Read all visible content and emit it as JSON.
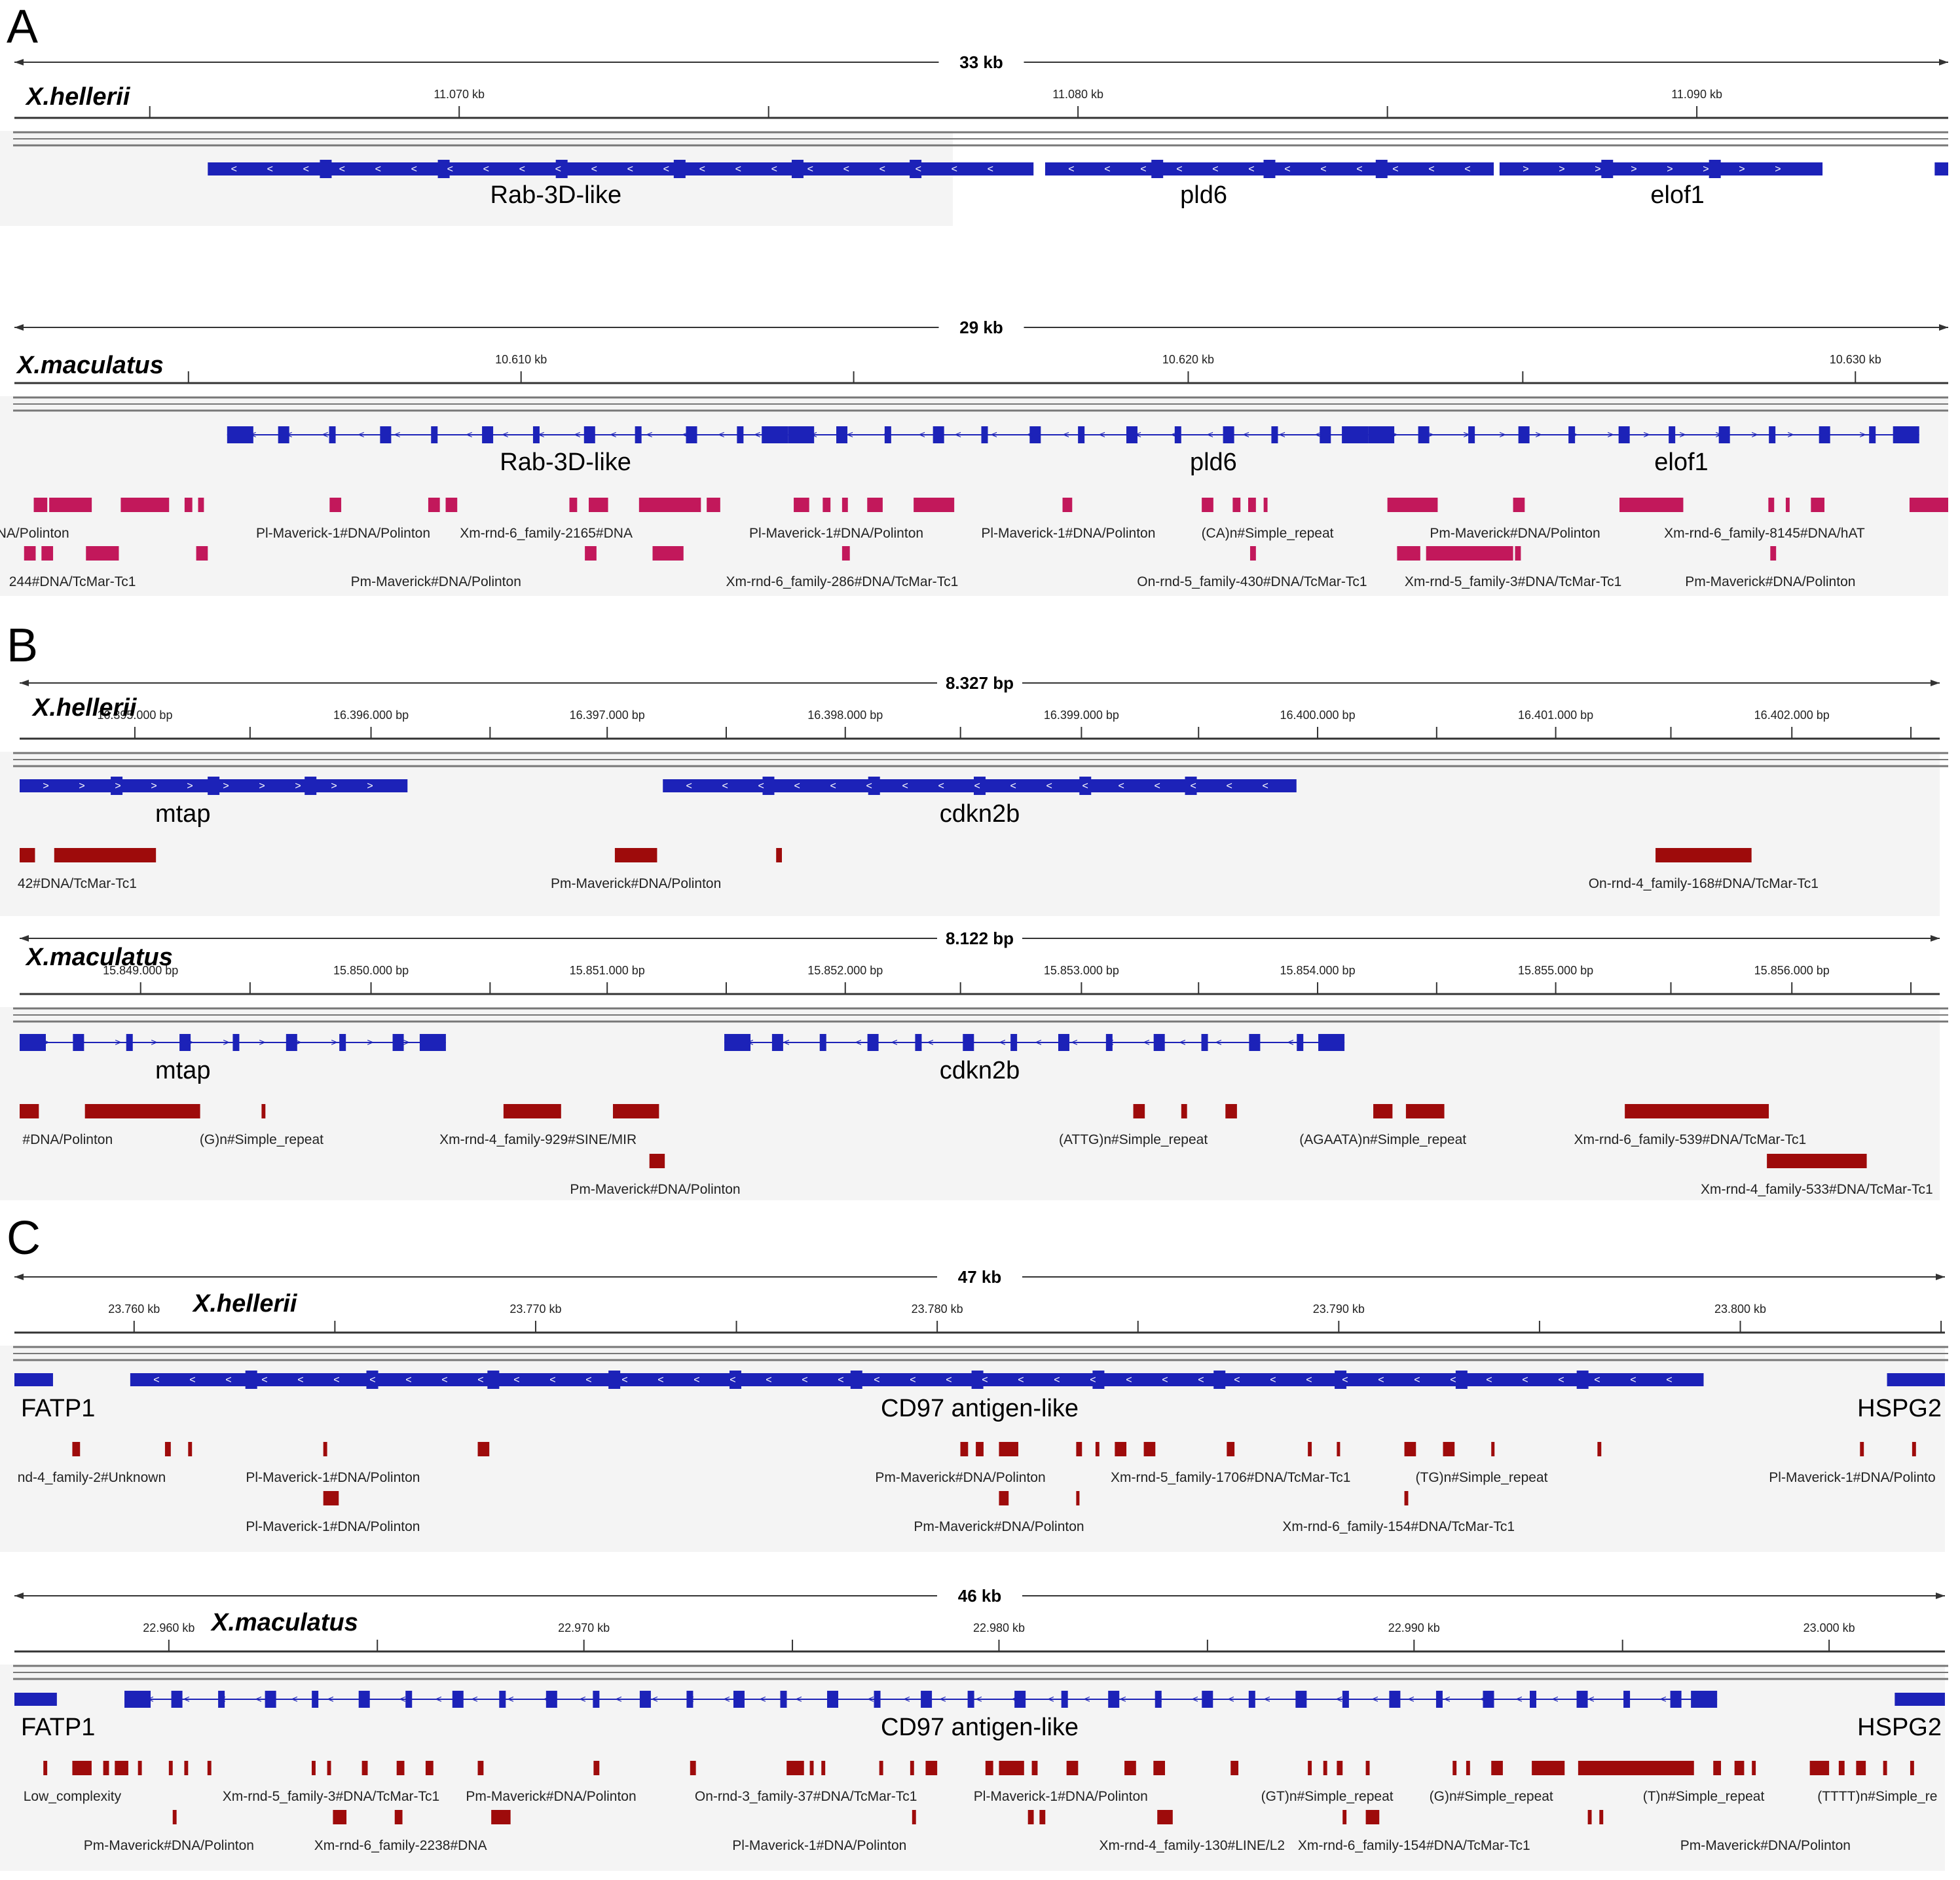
{
  "colors": {
    "gene": "#1c22b8",
    "repeat_a": "#c2185b",
    "repeat_bc": "#9e0b0b",
    "axis": "#333333",
    "band": "#f4f4f4"
  },
  "tracks": [
    {
      "id": "A-hellerii",
      "letter": "A",
      "species": "X.hellerii",
      "span": "33 kb",
      "ticks": [
        "11.070 kb",
        "11.080 kb",
        "11.090 kb"
      ],
      "repeat_color": "repeat_a",
      "genes": [
        {
          "label": "Rab-3D-like",
          "start": 0.1,
          "end": 0.527,
          "dir": "<",
          "intron": false
        },
        {
          "label": "pld6",
          "start": 0.533,
          "end": 0.765,
          "dir": "<",
          "intron": false
        },
        {
          "label": "elof1",
          "start": 0.768,
          "end": 0.935,
          "dir": ">",
          "intron": false
        },
        {
          "label": "",
          "start": 0.993,
          "end": 1.0,
          "dir": "",
          "intron": false
        }
      ],
      "repeats": [],
      "repeat_labels": []
    },
    {
      "id": "A-maculatus",
      "letter": "",
      "species": "X.maculatus",
      "span": "29 kb",
      "ticks": [
        "10.610 kb",
        "10.620 kb",
        "10.630 kb"
      ],
      "repeat_color": "repeat_a",
      "genes": [
        {
          "label": "Rab-3D-like",
          "start": 0.11,
          "end": 0.4,
          "dir": "<",
          "intron": true
        },
        {
          "label": "pld6",
          "start": 0.4,
          "end": 0.7,
          "dir": "<",
          "intron": true
        },
        {
          "label": "elof1",
          "start": 0.7,
          "end": 0.985,
          "dir": ">",
          "intron": true
        }
      ],
      "repeats": [
        [
          0.01,
          0.007,
          1
        ],
        [
          0.018,
          0.022,
          1
        ],
        [
          0.055,
          0.025,
          1
        ],
        [
          0.088,
          0.004,
          1
        ],
        [
          0.095,
          0.003,
          1
        ],
        [
          0.163,
          0.006,
          1
        ],
        [
          0.214,
          0.006,
          1
        ],
        [
          0.223,
          0.006,
          1
        ],
        [
          0.287,
          0.004,
          1
        ],
        [
          0.297,
          0.01,
          1
        ],
        [
          0.323,
          0.032,
          1
        ],
        [
          0.358,
          0.007,
          1
        ],
        [
          0.403,
          0.008,
          1
        ],
        [
          0.418,
          0.004,
          1
        ],
        [
          0.428,
          0.003,
          1
        ],
        [
          0.441,
          0.008,
          1
        ],
        [
          0.465,
          0.021,
          1
        ],
        [
          0.542,
          0.005,
          1
        ],
        [
          0.614,
          0.006,
          1
        ],
        [
          0.63,
          0.004,
          1
        ],
        [
          0.638,
          0.004,
          1
        ],
        [
          0.646,
          0.002,
          1
        ],
        [
          0.71,
          0.026,
          1
        ],
        [
          0.775,
          0.006,
          1
        ],
        [
          0.83,
          0.033,
          1
        ],
        [
          0.907,
          0.003,
          1
        ],
        [
          0.916,
          0.002,
          1
        ],
        [
          0.929,
          0.007,
          1
        ],
        [
          0.98,
          0.02,
          1
        ],
        [
          0.005,
          0.006,
          2
        ],
        [
          0.014,
          0.006,
          2
        ],
        [
          0.037,
          0.017,
          2
        ],
        [
          0.094,
          0.006,
          2
        ],
        [
          0.295,
          0.006,
          2
        ],
        [
          0.33,
          0.016,
          2
        ],
        [
          0.428,
          0.004,
          2
        ],
        [
          0.639,
          0.003,
          2
        ],
        [
          0.715,
          0.012,
          2
        ],
        [
          0.73,
          0.045,
          2
        ],
        [
          0.776,
          0.003,
          2
        ],
        [
          0.908,
          0.003,
          2
        ]
      ],
      "repeat_labels": [
        {
          "text": "#DNA/Polinton",
          "x": 0.005,
          "row": 1
        },
        {
          "text": "Pl-Maverick-1#DNA/Polinton",
          "x": 0.17,
          "row": 1
        },
        {
          "text": "Xm-rnd-6_family-2165#DNA",
          "x": 0.275,
          "row": 1
        },
        {
          "text": "Pl-Maverick-1#DNA/Polinton",
          "x": 0.425,
          "row": 1
        },
        {
          "text": "Pl-Maverick-1#DNA/Polinton",
          "x": 0.545,
          "row": 1
        },
        {
          "text": "(CA)n#Simple_repeat",
          "x": 0.648,
          "row": 1
        },
        {
          "text": "Pm-Maverick#DNA/Polinton",
          "x": 0.776,
          "row": 1
        },
        {
          "text": "Xm-rnd-6_family-8145#DNA/hAT",
          "x": 0.905,
          "row": 1
        },
        {
          "text": "244#DNA/TcMar-Tc1",
          "x": 0.03,
          "row": 2
        },
        {
          "text": "Pm-Maverick#DNA/Polinton",
          "x": 0.218,
          "row": 2
        },
        {
          "text": "Xm-rnd-6_family-286#DNA/TcMar-Tc1",
          "x": 0.428,
          "row": 2
        },
        {
          "text": "On-rnd-5_family-430#DNA/TcMar-Tc1",
          "x": 0.64,
          "row": 2
        },
        {
          "text": "Xm-rnd-5_family-3#DNA/TcMar-Tc1",
          "x": 0.775,
          "row": 2
        },
        {
          "text": "Pm-Maverick#DNA/Polinton",
          "x": 0.908,
          "row": 2
        }
      ]
    },
    {
      "id": "B-hellerii",
      "letter": "B",
      "species": "X.hellerii",
      "span": "8.327 bp",
      "ticks": [
        "16.395.000 bp",
        "16.396.000 bp",
        "16.397.000 bp",
        "16.398.000 bp",
        "16.399.000 bp",
        "16.400.000 bp",
        "16.401.000 bp",
        "16.402.000 bp"
      ],
      "repeat_color": "repeat_bc",
      "genes": [
        {
          "label": "mtap",
          "start": 0.0,
          "end": 0.202,
          "dir": ">",
          "intron": false
        },
        {
          "label": "cdkn2b",
          "start": 0.335,
          "end": 0.665,
          "dir": "<",
          "intron": false
        }
      ],
      "repeats": [
        [
          0.0,
          0.008,
          1
        ],
        [
          0.018,
          0.053,
          1
        ],
        [
          0.31,
          0.022,
          1
        ],
        [
          0.394,
          0.003,
          1
        ],
        [
          0.852,
          0.05,
          1
        ]
      ],
      "repeat_labels": [
        {
          "text": "42#DNA/TcMar-Tc1",
          "x": 0.03,
          "row": 1
        },
        {
          "text": "Pm-Maverick#DNA/Polinton",
          "x": 0.321,
          "row": 1
        },
        {
          "text": "On-rnd-4_family-168#DNA/TcMar-Tc1",
          "x": 0.877,
          "row": 1
        }
      ]
    },
    {
      "id": "B-maculatus",
      "letter": "",
      "species": "X.maculatus",
      "span": "8.122 bp",
      "ticks": [
        "15.849.000 bp",
        "15.850.000 bp",
        "15.851.000 bp",
        "15.852.000 bp",
        "15.853.000 bp",
        "15.854.000 bp",
        "15.855.000 bp",
        "15.856.000 bp"
      ],
      "repeat_color": "repeat_bc",
      "genes": [
        {
          "label": "mtap",
          "start": 0.0,
          "end": 0.222,
          "dir": ">",
          "intron": true
        },
        {
          "label": "cdkn2b",
          "start": 0.367,
          "end": 0.69,
          "dir": "<",
          "intron": true
        }
      ],
      "repeats": [
        [
          0.0,
          0.01,
          1
        ],
        [
          0.034,
          0.06,
          1
        ],
        [
          0.126,
          0.002,
          1
        ],
        [
          0.252,
          0.03,
          1
        ],
        [
          0.309,
          0.024,
          1
        ],
        [
          0.58,
          0.006,
          1
        ],
        [
          0.605,
          0.003,
          1
        ],
        [
          0.628,
          0.006,
          1
        ],
        [
          0.705,
          0.01,
          1
        ],
        [
          0.722,
          0.02,
          1
        ],
        [
          0.836,
          0.075,
          1
        ],
        [
          0.328,
          0.008,
          2
        ],
        [
          0.91,
          0.052,
          2
        ]
      ],
      "repeat_labels": [
        {
          "text": "#DNA/Polinton",
          "x": 0.025,
          "row": 1
        },
        {
          "text": "(G)n#Simple_repeat",
          "x": 0.126,
          "row": 1
        },
        {
          "text": "Xm-rnd-4_family-929#SINE/MIR",
          "x": 0.27,
          "row": 1
        },
        {
          "text": "(ATTG)n#Simple_repeat",
          "x": 0.58,
          "row": 1
        },
        {
          "text": "(AGAATA)n#Simple_repeat",
          "x": 0.71,
          "row": 1
        },
        {
          "text": "Xm-rnd-6_family-539#DNA/TcMar-Tc1",
          "x": 0.87,
          "row": 1
        },
        {
          "text": "Pm-Maverick#DNA/Polinton",
          "x": 0.331,
          "row": 2
        },
        {
          "text": "Xm-rnd-4_family-533#DNA/TcMar-Tc1",
          "x": 0.936,
          "row": 2
        }
      ]
    },
    {
      "id": "C-hellerii",
      "letter": "C",
      "species": "X.hellerii",
      "span": "47 kb",
      "ticks": [
        "23.760 kb",
        "23.770 kb",
        "23.780 kb",
        "23.790 kb",
        "23.800 kb"
      ],
      "repeat_color": "repeat_bc",
      "genes": [
        {
          "label": "FATP1",
          "start": 0.0,
          "end": 0.02,
          "dir": "",
          "intron": false
        },
        {
          "label": "CD97 antigen-like",
          "start": 0.06,
          "end": 0.875,
          "dir": "<",
          "intron": false
        },
        {
          "label": "HSPG2",
          "start": 0.97,
          "end": 1.0,
          "dir": "",
          "intron": false
        }
      ],
      "repeats": [
        [
          0.03,
          0.004,
          1
        ],
        [
          0.078,
          0.003,
          1
        ],
        [
          0.09,
          0.002,
          1
        ],
        [
          0.16,
          0.002,
          1
        ],
        [
          0.24,
          0.006,
          1
        ],
        [
          0.49,
          0.004,
          1
        ],
        [
          0.498,
          0.004,
          1
        ],
        [
          0.51,
          0.01,
          1
        ],
        [
          0.55,
          0.003,
          1
        ],
        [
          0.56,
          0.002,
          1
        ],
        [
          0.57,
          0.006,
          1
        ],
        [
          0.585,
          0.006,
          1
        ],
        [
          0.628,
          0.004,
          1
        ],
        [
          0.67,
          0.002,
          1
        ],
        [
          0.685,
          0.001,
          1
        ],
        [
          0.72,
          0.006,
          1
        ],
        [
          0.74,
          0.006,
          1
        ],
        [
          0.765,
          0.001,
          1
        ],
        [
          0.82,
          0.002,
          1
        ],
        [
          0.956,
          0.002,
          1
        ],
        [
          0.983,
          0.002,
          1
        ],
        [
          0.16,
          0.008,
          2
        ],
        [
          0.51,
          0.005,
          2
        ],
        [
          0.55,
          0.001,
          2
        ],
        [
          0.72,
          0.002,
          2
        ]
      ],
      "repeat_labels": [
        {
          "text": "nd-4_family-2#Unknown",
          "x": 0.04,
          "row": 1
        },
        {
          "text": "Pl-Maverick-1#DNA/Polinton",
          "x": 0.165,
          "row": 1
        },
        {
          "text": "Pm-Maverick#DNA/Polinton",
          "x": 0.49,
          "row": 1
        },
        {
          "text": "Xm-rnd-5_family-1706#DNA/TcMar-Tc1",
          "x": 0.63,
          "row": 1
        },
        {
          "text": "(TG)n#Simple_repeat",
          "x": 0.76,
          "row": 1
        },
        {
          "text": "Pl-Maverick-1#DNA/Polinto",
          "x": 0.952,
          "row": 1
        },
        {
          "text": "Pl-Maverick-1#DNA/Polinton",
          "x": 0.165,
          "row": 2
        },
        {
          "text": "Pm-Maverick#DNA/Polinton",
          "x": 0.51,
          "row": 2
        },
        {
          "text": "Xm-rnd-6_family-154#DNA/TcMar-Tc1",
          "x": 0.717,
          "row": 2
        }
      ]
    },
    {
      "id": "C-maculatus",
      "letter": "",
      "species": "X.maculatus",
      "span": "46 kb",
      "ticks": [
        "22.960 kb",
        "22.970 kb",
        "22.980 kb",
        "22.990 kb",
        "23.000 kb"
      ],
      "repeat_color": "repeat_bc",
      "genes": [
        {
          "label": "FATP1",
          "start": 0.0,
          "end": 0.022,
          "dir": "",
          "intron": false
        },
        {
          "label": "CD97 antigen-like",
          "start": 0.057,
          "end": 0.882,
          "dir": "<",
          "intron": true
        },
        {
          "label": "HSPG2",
          "start": 0.974,
          "end": 1.0,
          "dir": "",
          "intron": false
        }
      ],
      "repeats": [
        [
          0.015,
          0.002,
          1
        ],
        [
          0.03,
          0.01,
          1
        ],
        [
          0.046,
          0.003,
          1
        ],
        [
          0.052,
          0.007,
          1
        ],
        [
          0.064,
          0.002,
          1
        ],
        [
          0.08,
          0.002,
          1
        ],
        [
          0.088,
          0.002,
          1
        ],
        [
          0.1,
          0.002,
          1
        ],
        [
          0.154,
          0.002,
          1
        ],
        [
          0.162,
          0.002,
          1
        ],
        [
          0.18,
          0.003,
          1
        ],
        [
          0.198,
          0.004,
          1
        ],
        [
          0.213,
          0.004,
          1
        ],
        [
          0.24,
          0.003,
          1
        ],
        [
          0.3,
          0.003,
          1
        ],
        [
          0.35,
          0.003,
          1
        ],
        [
          0.4,
          0.009,
          1
        ],
        [
          0.412,
          0.002,
          1
        ],
        [
          0.418,
          0.002,
          1
        ],
        [
          0.448,
          0.002,
          1
        ],
        [
          0.464,
          0.002,
          1
        ],
        [
          0.472,
          0.006,
          1
        ],
        [
          0.503,
          0.004,
          1
        ],
        [
          0.51,
          0.013,
          1
        ],
        [
          0.527,
          0.003,
          1
        ],
        [
          0.545,
          0.006,
          1
        ],
        [
          0.575,
          0.006,
          1
        ],
        [
          0.59,
          0.006,
          1
        ],
        [
          0.63,
          0.004,
          1
        ],
        [
          0.67,
          0.002,
          1
        ],
        [
          0.678,
          0.002,
          1
        ],
        [
          0.685,
          0.003,
          1
        ],
        [
          0.7,
          0.002,
          1
        ],
        [
          0.745,
          0.002,
          1
        ],
        [
          0.752,
          0.002,
          1
        ],
        [
          0.765,
          0.006,
          1
        ],
        [
          0.786,
          0.017,
          1
        ],
        [
          0.81,
          0.06,
          1
        ],
        [
          0.88,
          0.004,
          1
        ],
        [
          0.891,
          0.005,
          1
        ],
        [
          0.9,
          0.002,
          1
        ],
        [
          0.93,
          0.01,
          1
        ],
        [
          0.945,
          0.003,
          1
        ],
        [
          0.954,
          0.005,
          1
        ],
        [
          0.968,
          0.002,
          1
        ],
        [
          0.982,
          0.002,
          1
        ],
        [
          0.082,
          0.002,
          2
        ],
        [
          0.165,
          0.007,
          2
        ],
        [
          0.197,
          0.004,
          2
        ],
        [
          0.247,
          0.01,
          2
        ],
        [
          0.465,
          0.002,
          2
        ],
        [
          0.525,
          0.003,
          2
        ],
        [
          0.531,
          0.003,
          2
        ],
        [
          0.592,
          0.008,
          2
        ],
        [
          0.688,
          0.002,
          2
        ],
        [
          0.7,
          0.007,
          2
        ],
        [
          0.815,
          0.002,
          2
        ],
        [
          0.821,
          0.002,
          2
        ]
      ],
      "repeat_labels": [
        {
          "text": "Low_complexity",
          "x": 0.03,
          "row": 1
        },
        {
          "text": "Xm-rnd-5_family-3#DNA/TcMar-Tc1",
          "x": 0.164,
          "row": 1
        },
        {
          "text": "Pm-Maverick#DNA/Polinton",
          "x": 0.278,
          "row": 1
        },
        {
          "text": "On-rnd-3_family-37#DNA/TcMar-Tc1",
          "x": 0.41,
          "row": 1
        },
        {
          "text": "Pl-Maverick-1#DNA/Polinton",
          "x": 0.542,
          "row": 1
        },
        {
          "text": "(GT)n#Simple_repeat",
          "x": 0.68,
          "row": 1
        },
        {
          "text": "(G)n#Simple_repeat",
          "x": 0.765,
          "row": 1
        },
        {
          "text": "(T)n#Simple_repeat",
          "x": 0.875,
          "row": 1
        },
        {
          "text": "(TTTT)n#Simple_re",
          "x": 0.965,
          "row": 1
        },
        {
          "text": "Pm-Maverick#DNA/Polinton",
          "x": 0.08,
          "row": 2
        },
        {
          "text": "Xm-rnd-6_family-2238#DNA",
          "x": 0.2,
          "row": 2
        },
        {
          "text": "Pl-Maverick-1#DNA/Polinton",
          "x": 0.417,
          "row": 2
        },
        {
          "text": "Xm-rnd-4_family-130#LINE/L2",
          "x": 0.61,
          "row": 2
        },
        {
          "text": "Xm-rnd-6_family-154#DNA/TcMar-Tc1",
          "x": 0.725,
          "row": 2
        },
        {
          "text": "Pm-Maverick#DNA/Polinton",
          "x": 0.907,
          "row": 2
        }
      ]
    }
  ]
}
